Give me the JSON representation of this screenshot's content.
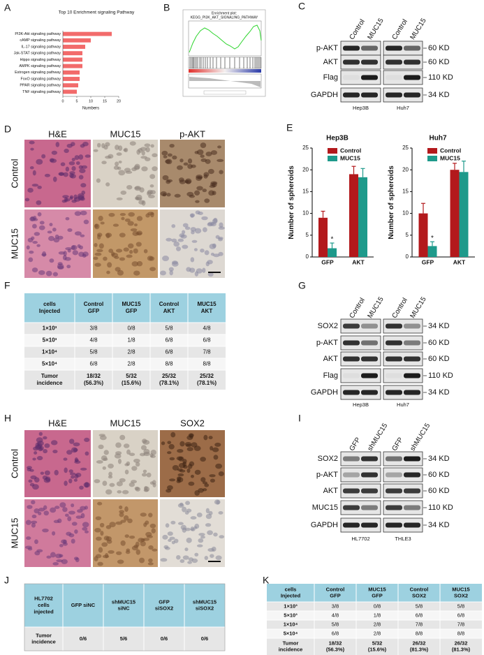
{
  "panel_labels": [
    "A",
    "B",
    "C",
    "D",
    "E",
    "F",
    "G",
    "H",
    "I",
    "J",
    "K"
  ],
  "chart_data": [
    {
      "type": "bar",
      "orientation": "horizontal",
      "title": "Top 10 Enrichment signaling Pathway",
      "xlabel": "Numbers",
      "categories": [
        "PI3K-Akt signaling pathway",
        "cAMP signaling pathway",
        "IL-17 signaling pathway",
        "Jak-STAT signaling pathway",
        "Hippo signaling pathway",
        "AMPK signaling pathway",
        "Estrogen signaling pathway",
        "FoxO signaling pathway",
        "PPAR signaling pathway",
        "TNF signaling pathway"
      ],
      "values": [
        17.5,
        10,
        8,
        7,
        7,
        7,
        6,
        6,
        5.5,
        5
      ],
      "color": "#f26b6b",
      "xlim": [
        0,
        20
      ],
      "xticks": [
        0,
        5,
        10,
        15,
        20
      ]
    },
    {
      "type": "bar",
      "title": "Hep3B",
      "ylabel": "Number of spheroids",
      "categories": [
        "GFP",
        "AKT"
      ],
      "series": [
        {
          "name": "Control",
          "color": "#b3191c",
          "values": [
            9,
            19
          ],
          "errors": [
            1.5,
            1.8
          ]
        },
        {
          "name": "MUC15",
          "color": "#1e9a8b",
          "values": [
            2,
            18.3
          ],
          "errors": [
            1.2,
            2
          ]
        }
      ],
      "annotations": [
        "*"
      ],
      "ylim": [
        0,
        25
      ],
      "yticks": [
        0,
        5,
        10,
        15,
        20,
        25
      ]
    },
    {
      "type": "bar",
      "title": "Huh7",
      "ylabel": "Number of spheroids",
      "categories": [
        "GFP",
        "AKT"
      ],
      "series": [
        {
          "name": "Control",
          "color": "#b3191c",
          "values": [
            10,
            20
          ],
          "errors": [
            2.3,
            1.5
          ]
        },
        {
          "name": "MUC15",
          "color": "#1e9a8b",
          "values": [
            2.5,
            19.5
          ],
          "errors": [
            1,
            2.5
          ]
        }
      ],
      "annotations": [
        "*"
      ],
      "ylim": [
        0,
        25
      ],
      "yticks": [
        0,
        5,
        10,
        15,
        20,
        25
      ]
    }
  ],
  "panel_b": {
    "title": "Enrichment plot:",
    "subtitle": "KEGG_PI3K_AKT_SIGNALING_PATHWAY"
  },
  "blot_c": {
    "columns": [
      "Control",
      "MUC15",
      "Control",
      "MUC15"
    ],
    "rows": [
      "p-AKT",
      "AKT",
      "Flag",
      "GAPDH"
    ],
    "sizes": [
      "60 KD",
      "60 KD",
      "110 KD",
      "34 KD"
    ],
    "cell_lines": [
      "Hep3B",
      "Huh7"
    ]
  },
  "ihc_d": {
    "columns": [
      "H&E",
      "MUC15",
      "p-AKT"
    ],
    "rows": [
      "Control",
      "MUC15"
    ]
  },
  "table_f": {
    "header": [
      [
        "cells",
        "Injected"
      ],
      [
        "Control",
        "GFP"
      ],
      [
        "MUC15",
        "GFP"
      ],
      [
        "Control",
        "AKT"
      ],
      [
        "MUC15",
        "AKT"
      ]
    ],
    "rows": [
      [
        [
          "1×10³"
        ],
        [
          "3/8"
        ],
        [
          "0/8"
        ],
        [
          "5/8"
        ],
        [
          "4/8"
        ]
      ],
      [
        [
          "5×10³"
        ],
        [
          "4/8"
        ],
        [
          "1/8"
        ],
        [
          "6/8"
        ],
        [
          "6/8"
        ]
      ],
      [
        [
          "1×10⁴"
        ],
        [
          "5/8"
        ],
        [
          "2/8"
        ],
        [
          "6/8"
        ],
        [
          "7/8"
        ]
      ],
      [
        [
          "5×10⁴"
        ],
        [
          "6/8"
        ],
        [
          "2/8"
        ],
        [
          "8/8"
        ],
        [
          "8/8"
        ]
      ],
      [
        [
          "Tumor",
          "incidence"
        ],
        [
          "18/32",
          "(56.3%)"
        ],
        [
          "5/32",
          "(15.6%)"
        ],
        [
          "25/32",
          "(78.1%)"
        ],
        [
          "25/32",
          "(78.1%)"
        ]
      ]
    ]
  },
  "blot_g": {
    "columns": [
      "Control",
      "MUC15",
      "Control",
      "MUC15"
    ],
    "rows": [
      "SOX2",
      "p-AKT",
      "AKT",
      "Flag",
      "GAPDH"
    ],
    "sizes": [
      "34 KD",
      "60 KD",
      "60 KD",
      "110 KD",
      "34 KD"
    ],
    "cell_lines": [
      "Hep3B",
      "Huh7"
    ]
  },
  "ihc_h": {
    "columns": [
      "H&E",
      "MUC15",
      "SOX2"
    ],
    "rows": [
      "Control",
      "MUC15"
    ]
  },
  "blot_i": {
    "columns": [
      "GFP",
      "shMUC15",
      "GFP",
      "shMUC15"
    ],
    "rows": [
      "SOX2",
      "p-AKT",
      "AKT",
      "MUC15",
      "GAPDH"
    ],
    "sizes": [
      "34 KD",
      "60 KD",
      "60 KD",
      "110 KD",
      "34 KD"
    ],
    "cell_lines": [
      "HL7702",
      "THLE3"
    ]
  },
  "table_j": {
    "header": [
      [
        "HL7702",
        "cells",
        "injected"
      ],
      [
        "GFP siNC"
      ],
      [
        "shMUC15",
        "siNC"
      ],
      [
        "GFP",
        "siSOX2"
      ],
      [
        "shMUC15",
        "siSOX2"
      ]
    ],
    "rows": [
      [
        [
          "Tumor",
          "incidence"
        ],
        [
          "0/6"
        ],
        [
          "5/6"
        ],
        [
          "0/6"
        ],
        [
          "0/6"
        ]
      ]
    ]
  },
  "table_k": {
    "header": [
      [
        "cells",
        "Injected"
      ],
      [
        "Control",
        "GFP"
      ],
      [
        "MUC15",
        "GFP"
      ],
      [
        "Control",
        "SOX2"
      ],
      [
        "MUC15",
        "SOX2"
      ]
    ],
    "rows": [
      [
        [
          "1×10³"
        ],
        [
          "3/8"
        ],
        [
          "0/8"
        ],
        [
          "5/8"
        ],
        [
          "5/8"
        ]
      ],
      [
        [
          "5×10³"
        ],
        [
          "4/8"
        ],
        [
          "1/8"
        ],
        [
          "6/8"
        ],
        [
          "6/8"
        ]
      ],
      [
        [
          "1×10⁴"
        ],
        [
          "5/8"
        ],
        [
          "2/8"
        ],
        [
          "7/8"
        ],
        [
          "7/8"
        ]
      ],
      [
        [
          "5×10⁴"
        ],
        [
          "6/8"
        ],
        [
          "2/8"
        ],
        [
          "8/8"
        ],
        [
          "8/8"
        ]
      ],
      [
        [
          "Tumor",
          "incidence"
        ],
        [
          "18/32",
          "(56.3%)"
        ],
        [
          "5/32",
          "(15.6%)"
        ],
        [
          "26/32",
          "(81.3%)"
        ],
        [
          "26/32",
          "(81.3%)"
        ]
      ]
    ]
  }
}
